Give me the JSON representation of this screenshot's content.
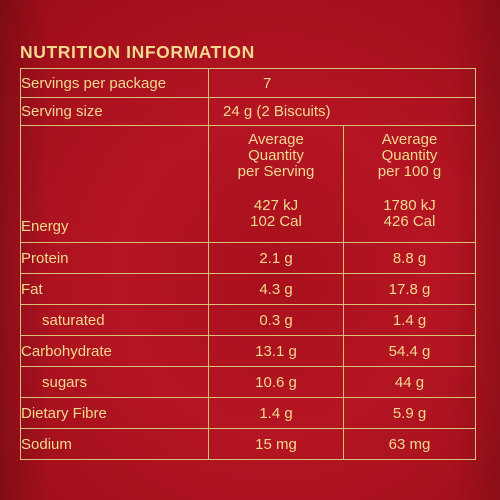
{
  "title": "NUTRITION INFORMATION",
  "servings_per_package": {
    "label": "Servings per package",
    "value": "7"
  },
  "serving_size": {
    "label": "Serving size",
    "value": "24 g (2 Biscuits)"
  },
  "columns": {
    "per_serving": [
      "Average",
      "Quantity",
      "per Serving"
    ],
    "per_100g": [
      "Average",
      "Quantity",
      "per 100 g"
    ]
  },
  "rows": [
    {
      "label": "Energy",
      "per_serving": [
        "427 kJ",
        "102 Cal"
      ],
      "per_100g": [
        "1780 kJ",
        "426 Cal"
      ]
    },
    {
      "label": "Protein",
      "per_serving": "2.1 g",
      "per_100g": "8.8 g"
    },
    {
      "label": "Fat",
      "per_serving": "4.3 g",
      "per_100g": "17.8 g"
    },
    {
      "label": "saturated",
      "per_serving": "0.3 g",
      "per_100g": "1.4 g"
    },
    {
      "label": "Carbohydrate",
      "per_serving": "13.1 g",
      "per_100g": "54.4 g"
    },
    {
      "label": "sugars",
      "per_serving": "10.6 g",
      "per_100g": "44 g"
    },
    {
      "label": "Dietary Fibre",
      "per_serving": "1.4 g",
      "per_100g": "5.9 g"
    },
    {
      "label": "Sodium",
      "per_serving": "15 mg",
      "per_100g": "63 mg"
    }
  ],
  "colors": {
    "background": "#b51523",
    "text": "#efd98f",
    "border": "#d9c078"
  }
}
